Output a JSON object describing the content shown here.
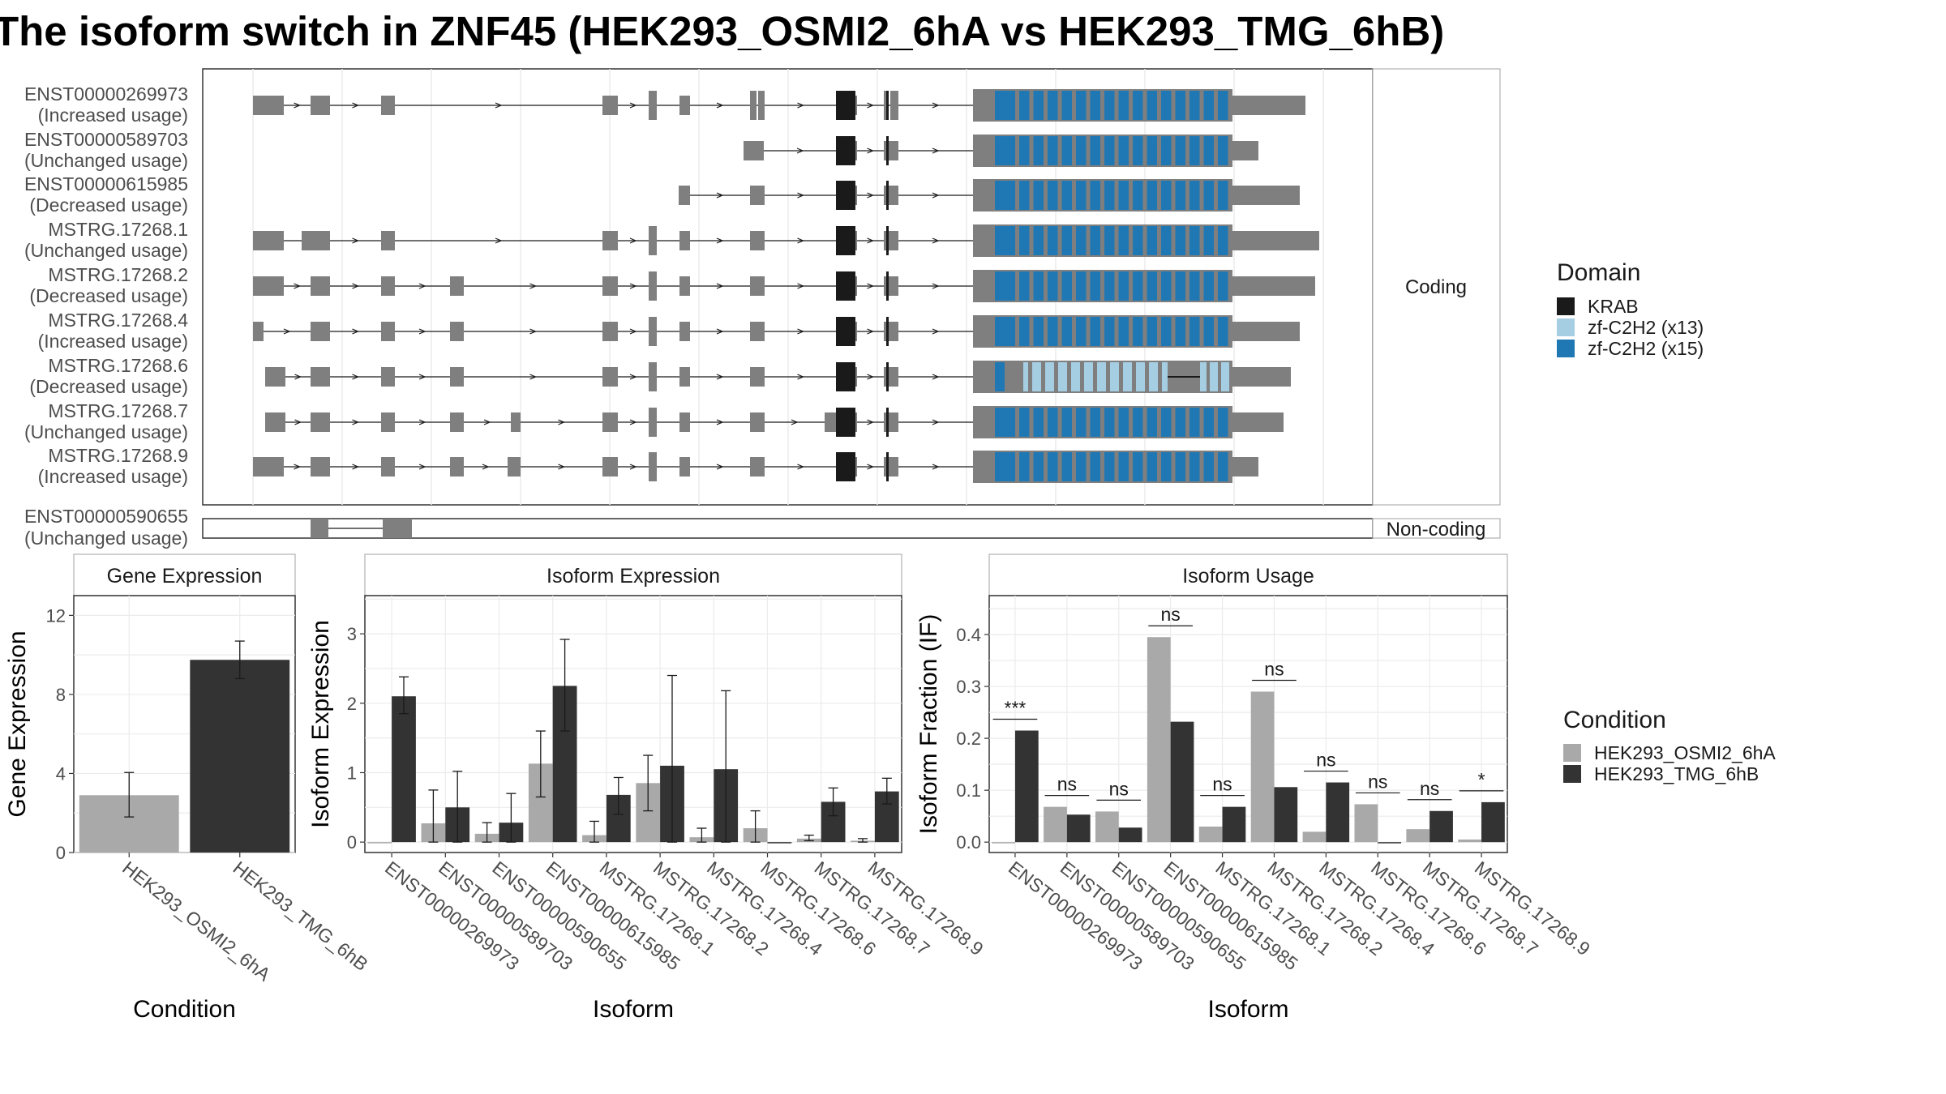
{
  "title": "The isoform switch in ZNF45 (HEK293_OSMI2_6hA vs HEK293_TMG_6hB)",
  "colors": {
    "exon": "#7f7f7f",
    "krab": "#1a1a1a",
    "zf13": "#a6cee3",
    "zf15": "#1f78b4",
    "condA": "#a9a9a9",
    "condB": "#333333",
    "panel_border": "#333333",
    "grid": "#ebebeb"
  },
  "structure": {
    "coding_label": "Coding",
    "noncoding_label": "Non-coding",
    "domain_legend_title": "Domain",
    "domains": [
      {
        "key": "krab",
        "name": "KRAB"
      },
      {
        "key": "zf13",
        "name": "zf-C2H2 (x13)"
      },
      {
        "key": "zf15",
        "name": "zf-C2H2 (x15)"
      }
    ],
    "coding_isoforms": [
      {
        "id": "ENST00000269973",
        "status": "(Increased usage)"
      },
      {
        "id": "ENST00000589703",
        "status": "(Unchanged usage)"
      },
      {
        "id": "ENST00000615985",
        "status": "(Decreased usage)"
      },
      {
        "id": "MSTRG.17268.1",
        "status": "(Unchanged usage)"
      },
      {
        "id": "MSTRG.17268.2",
        "status": "(Decreased usage)"
      },
      {
        "id": "MSTRG.17268.4",
        "status": "(Increased usage)"
      },
      {
        "id": "MSTRG.17268.6",
        "status": "(Decreased usage)"
      },
      {
        "id": "MSTRG.17268.7",
        "status": "(Unchanged usage)"
      },
      {
        "id": "MSTRG.17268.9",
        "status": "(Increased usage)"
      }
    ],
    "noncoding_isoforms": [
      {
        "id": "ENST00000590655",
        "status": "(Unchanged usage)"
      }
    ]
  },
  "chart_data": [
    {
      "type": "bar",
      "title": "Gene Expression",
      "xlabel": "Condition",
      "ylabel": "Gene Expression",
      "ylim": [
        0,
        13
      ],
      "yticks": [
        0,
        4,
        8,
        12
      ],
      "categories": [
        "HEK293_OSMI2_6hA",
        "HEK293_TMG_6hB"
      ],
      "values": [
        2.9,
        9.75
      ],
      "err_low": [
        1.8,
        8.8
      ],
      "err_high": [
        4.05,
        10.7
      ]
    },
    {
      "type": "bar",
      "title": "Isoform Expression",
      "xlabel": "Isoform",
      "ylabel": "Isoform Expression",
      "ylim": [
        -0.15,
        3.55
      ],
      "yticks": [
        0,
        1,
        2,
        3
      ],
      "categories": [
        "ENST00000269973",
        "ENST00000589703",
        "ENST00000590655",
        "ENST00000615985",
        "MSTRG.17268.1",
        "MSTRG.17268.2",
        "MSTRG.17268.4",
        "MSTRG.17268.6",
        "MSTRG.17268.7",
        "MSTRG.17268.9"
      ],
      "series": [
        {
          "name": "HEK293_OSMI2_6hA",
          "color": "condA",
          "values": [
            0,
            0.27,
            0.12,
            1.13,
            0.1,
            0.85,
            0.07,
            0.2,
            0.05,
            0.02
          ],
          "err_low": [
            0,
            0,
            0,
            0.65,
            0,
            0.45,
            0,
            0,
            0.02,
            0
          ],
          "err_high": [
            0,
            0.75,
            0.28,
            1.6,
            0.3,
            1.25,
            0.2,
            0.45,
            0.1,
            0.05
          ]
        },
        {
          "name": "HEK293_TMG_6hB",
          "color": "condB",
          "values": [
            2.1,
            0.5,
            0.28,
            2.25,
            0.68,
            1.1,
            1.05,
            0,
            0.58,
            0.73
          ],
          "err_low": [
            1.85,
            0,
            0,
            1.6,
            0.4,
            0,
            0,
            0,
            0.38,
            0.55
          ],
          "err_high": [
            2.38,
            1.02,
            0.7,
            2.92,
            0.93,
            2.4,
            2.18,
            0,
            0.78,
            0.92
          ]
        }
      ]
    },
    {
      "type": "bar",
      "title": "Isoform Usage",
      "xlabel": "Isoform",
      "ylabel": "Isoform Fraction (IF)",
      "ylim": [
        -0.02,
        0.475
      ],
      "yticks": [
        0.0,
        0.1,
        0.2,
        0.3,
        0.4
      ],
      "ytick_labels": [
        "0.0",
        "0.1",
        "0.2",
        "0.3",
        "0.4"
      ],
      "categories": [
        "ENST00000269973",
        "ENST00000589703",
        "ENST00000590655",
        "ENST00000615985",
        "MSTRG.17268.1",
        "MSTRG.17268.2",
        "MSTRG.17268.4",
        "MSTRG.17268.6",
        "MSTRG.17268.7",
        "MSTRG.17268.9"
      ],
      "series": [
        {
          "name": "HEK293_OSMI2_6hA",
          "color": "condA",
          "values": [
            0.0,
            0.068,
            0.059,
            0.395,
            0.03,
            0.29,
            0.02,
            0.073,
            0.025,
            0.005
          ]
        },
        {
          "name": "HEK293_TMG_6hB",
          "color": "condB",
          "values": [
            0.215,
            0.053,
            0.028,
            0.232,
            0.068,
            0.106,
            0.115,
            0.0,
            0.06,
            0.077
          ]
        }
      ],
      "significance": [
        "***",
        "ns",
        "ns",
        "ns",
        "ns",
        "ns",
        "ns",
        "ns",
        "ns",
        "*"
      ]
    }
  ],
  "condition_legend": {
    "title": "Condition",
    "items": [
      {
        "name": "HEK293_OSMI2_6hA",
        "color": "condA"
      },
      {
        "name": "HEK293_TMG_6hB",
        "color": "condB"
      }
    ]
  }
}
